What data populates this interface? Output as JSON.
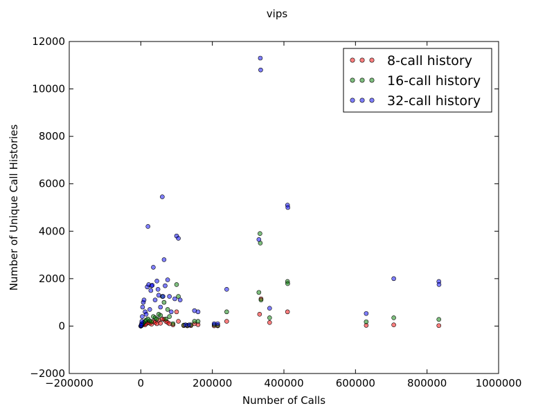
{
  "chart_data": {
    "type": "scatter",
    "title": "vips",
    "xlabel": "Number of Calls",
    "ylabel": "Number of Unique Call Histories",
    "xlim": [
      -200000,
      1000000
    ],
    "ylim": [
      -2000,
      12000
    ],
    "x_ticks": [
      -200000,
      0,
      200000,
      400000,
      600000,
      800000,
      1000000
    ],
    "x_tick_labels": [
      "−200000",
      "0",
      "200000",
      "400000",
      "600000",
      "800000",
      "1000000"
    ],
    "y_ticks": [
      -2000,
      0,
      2000,
      4000,
      6000,
      8000,
      10000,
      12000
    ],
    "y_tick_labels": [
      "−2000",
      "0",
      "2000",
      "4000",
      "6000",
      "8000",
      "10000",
      "12000"
    ],
    "grid": false,
    "legend_position": "top-right",
    "series": [
      {
        "name": "8-call history",
        "color": "#ff0000",
        "points": [
          [
            0,
            0
          ],
          [
            1000,
            10
          ],
          [
            2000,
            20
          ],
          [
            3000,
            40
          ],
          [
            5000,
            60
          ],
          [
            8000,
            80
          ],
          [
            12000,
            50
          ],
          [
            15000,
            100
          ],
          [
            20000,
            150
          ],
          [
            25000,
            120
          ],
          [
            30000,
            80
          ],
          [
            35000,
            200
          ],
          [
            40000,
            150
          ],
          [
            45000,
            100
          ],
          [
            50000,
            250
          ],
          [
            55000,
            120
          ],
          [
            60000,
            300
          ],
          [
            65000,
            280
          ],
          [
            70000,
            200
          ],
          [
            75000,
            150
          ],
          [
            80000,
            100
          ],
          [
            90000,
            50
          ],
          [
            100000,
            600
          ],
          [
            105000,
            200
          ],
          [
            120000,
            20
          ],
          [
            130000,
            10
          ],
          [
            140000,
            20
          ],
          [
            150000,
            100
          ],
          [
            160000,
            60
          ],
          [
            205000,
            10
          ],
          [
            215000,
            10
          ],
          [
            240000,
            200
          ],
          [
            332000,
            500
          ],
          [
            336000,
            1150
          ],
          [
            360000,
            150
          ],
          [
            410000,
            600
          ],
          [
            630000,
            30
          ],
          [
            707000,
            50
          ],
          [
            833000,
            20
          ]
        ]
      },
      {
        "name": "16-call history",
        "color": "#008000",
        "points": [
          [
            0,
            0
          ],
          [
            1000,
            20
          ],
          [
            3000,
            60
          ],
          [
            5000,
            100
          ],
          [
            8000,
            150
          ],
          [
            12000,
            200
          ],
          [
            15000,
            250
          ],
          [
            20000,
            300
          ],
          [
            25000,
            220
          ],
          [
            30000,
            180
          ],
          [
            35000,
            400
          ],
          [
            40000,
            350
          ],
          [
            45000,
            300
          ],
          [
            50000,
            500
          ],
          [
            55000,
            450
          ],
          [
            60000,
            1250
          ],
          [
            65000,
            1000
          ],
          [
            70000,
            300
          ],
          [
            75000,
            700
          ],
          [
            80000,
            400
          ],
          [
            90000,
            100
          ],
          [
            100000,
            1750
          ],
          [
            105000,
            1250
          ],
          [
            120000,
            40
          ],
          [
            130000,
            30
          ],
          [
            140000,
            50
          ],
          [
            150000,
            200
          ],
          [
            160000,
            200
          ],
          [
            205000,
            50
          ],
          [
            215000,
            30
          ],
          [
            240000,
            600
          ],
          [
            330000,
            1420
          ],
          [
            333000,
            3900
          ],
          [
            334000,
            3500
          ],
          [
            336000,
            1100
          ],
          [
            360000,
            350
          ],
          [
            410000,
            1880
          ],
          [
            410500,
            1790
          ],
          [
            630000,
            180
          ],
          [
            707000,
            350
          ],
          [
            833000,
            280
          ]
        ]
      },
      {
        "name": "32-call history",
        "color": "#0000ff",
        "points": [
          [
            0,
            0
          ],
          [
            1000,
            30
          ],
          [
            2000,
            100
          ],
          [
            3000,
            200
          ],
          [
            4000,
            400
          ],
          [
            5000,
            800
          ],
          [
            7000,
            1000
          ],
          [
            9000,
            1100
          ],
          [
            12000,
            600
          ],
          [
            15000,
            500
          ],
          [
            18000,
            1650
          ],
          [
            20000,
            4200
          ],
          [
            22000,
            1750
          ],
          [
            25000,
            700
          ],
          [
            28000,
            1500
          ],
          [
            30000,
            1700
          ],
          [
            32000,
            1720
          ],
          [
            35000,
            2480
          ],
          [
            40000,
            1100
          ],
          [
            45000,
            1900
          ],
          [
            48000,
            1550
          ],
          [
            50000,
            1300
          ],
          [
            55000,
            800
          ],
          [
            60000,
            5450
          ],
          [
            62000,
            1250
          ],
          [
            65000,
            2800
          ],
          [
            68000,
            1700
          ],
          [
            75000,
            1950
          ],
          [
            80000,
            1250
          ],
          [
            85000,
            600
          ],
          [
            95000,
            1150
          ],
          [
            100000,
            3800
          ],
          [
            105000,
            3700
          ],
          [
            110000,
            1100
          ],
          [
            125000,
            50
          ],
          [
            135000,
            50
          ],
          [
            150000,
            650
          ],
          [
            160000,
            600
          ],
          [
            205000,
            100
          ],
          [
            215000,
            100
          ],
          [
            240000,
            1550
          ],
          [
            330000,
            3650
          ],
          [
            334000,
            11300
          ],
          [
            335000,
            10800
          ],
          [
            360000,
            750
          ],
          [
            410000,
            5100
          ],
          [
            411000,
            5000
          ],
          [
            630000,
            530
          ],
          [
            707000,
            2000
          ],
          [
            833000,
            1880
          ],
          [
            833500,
            1750
          ]
        ]
      }
    ]
  }
}
